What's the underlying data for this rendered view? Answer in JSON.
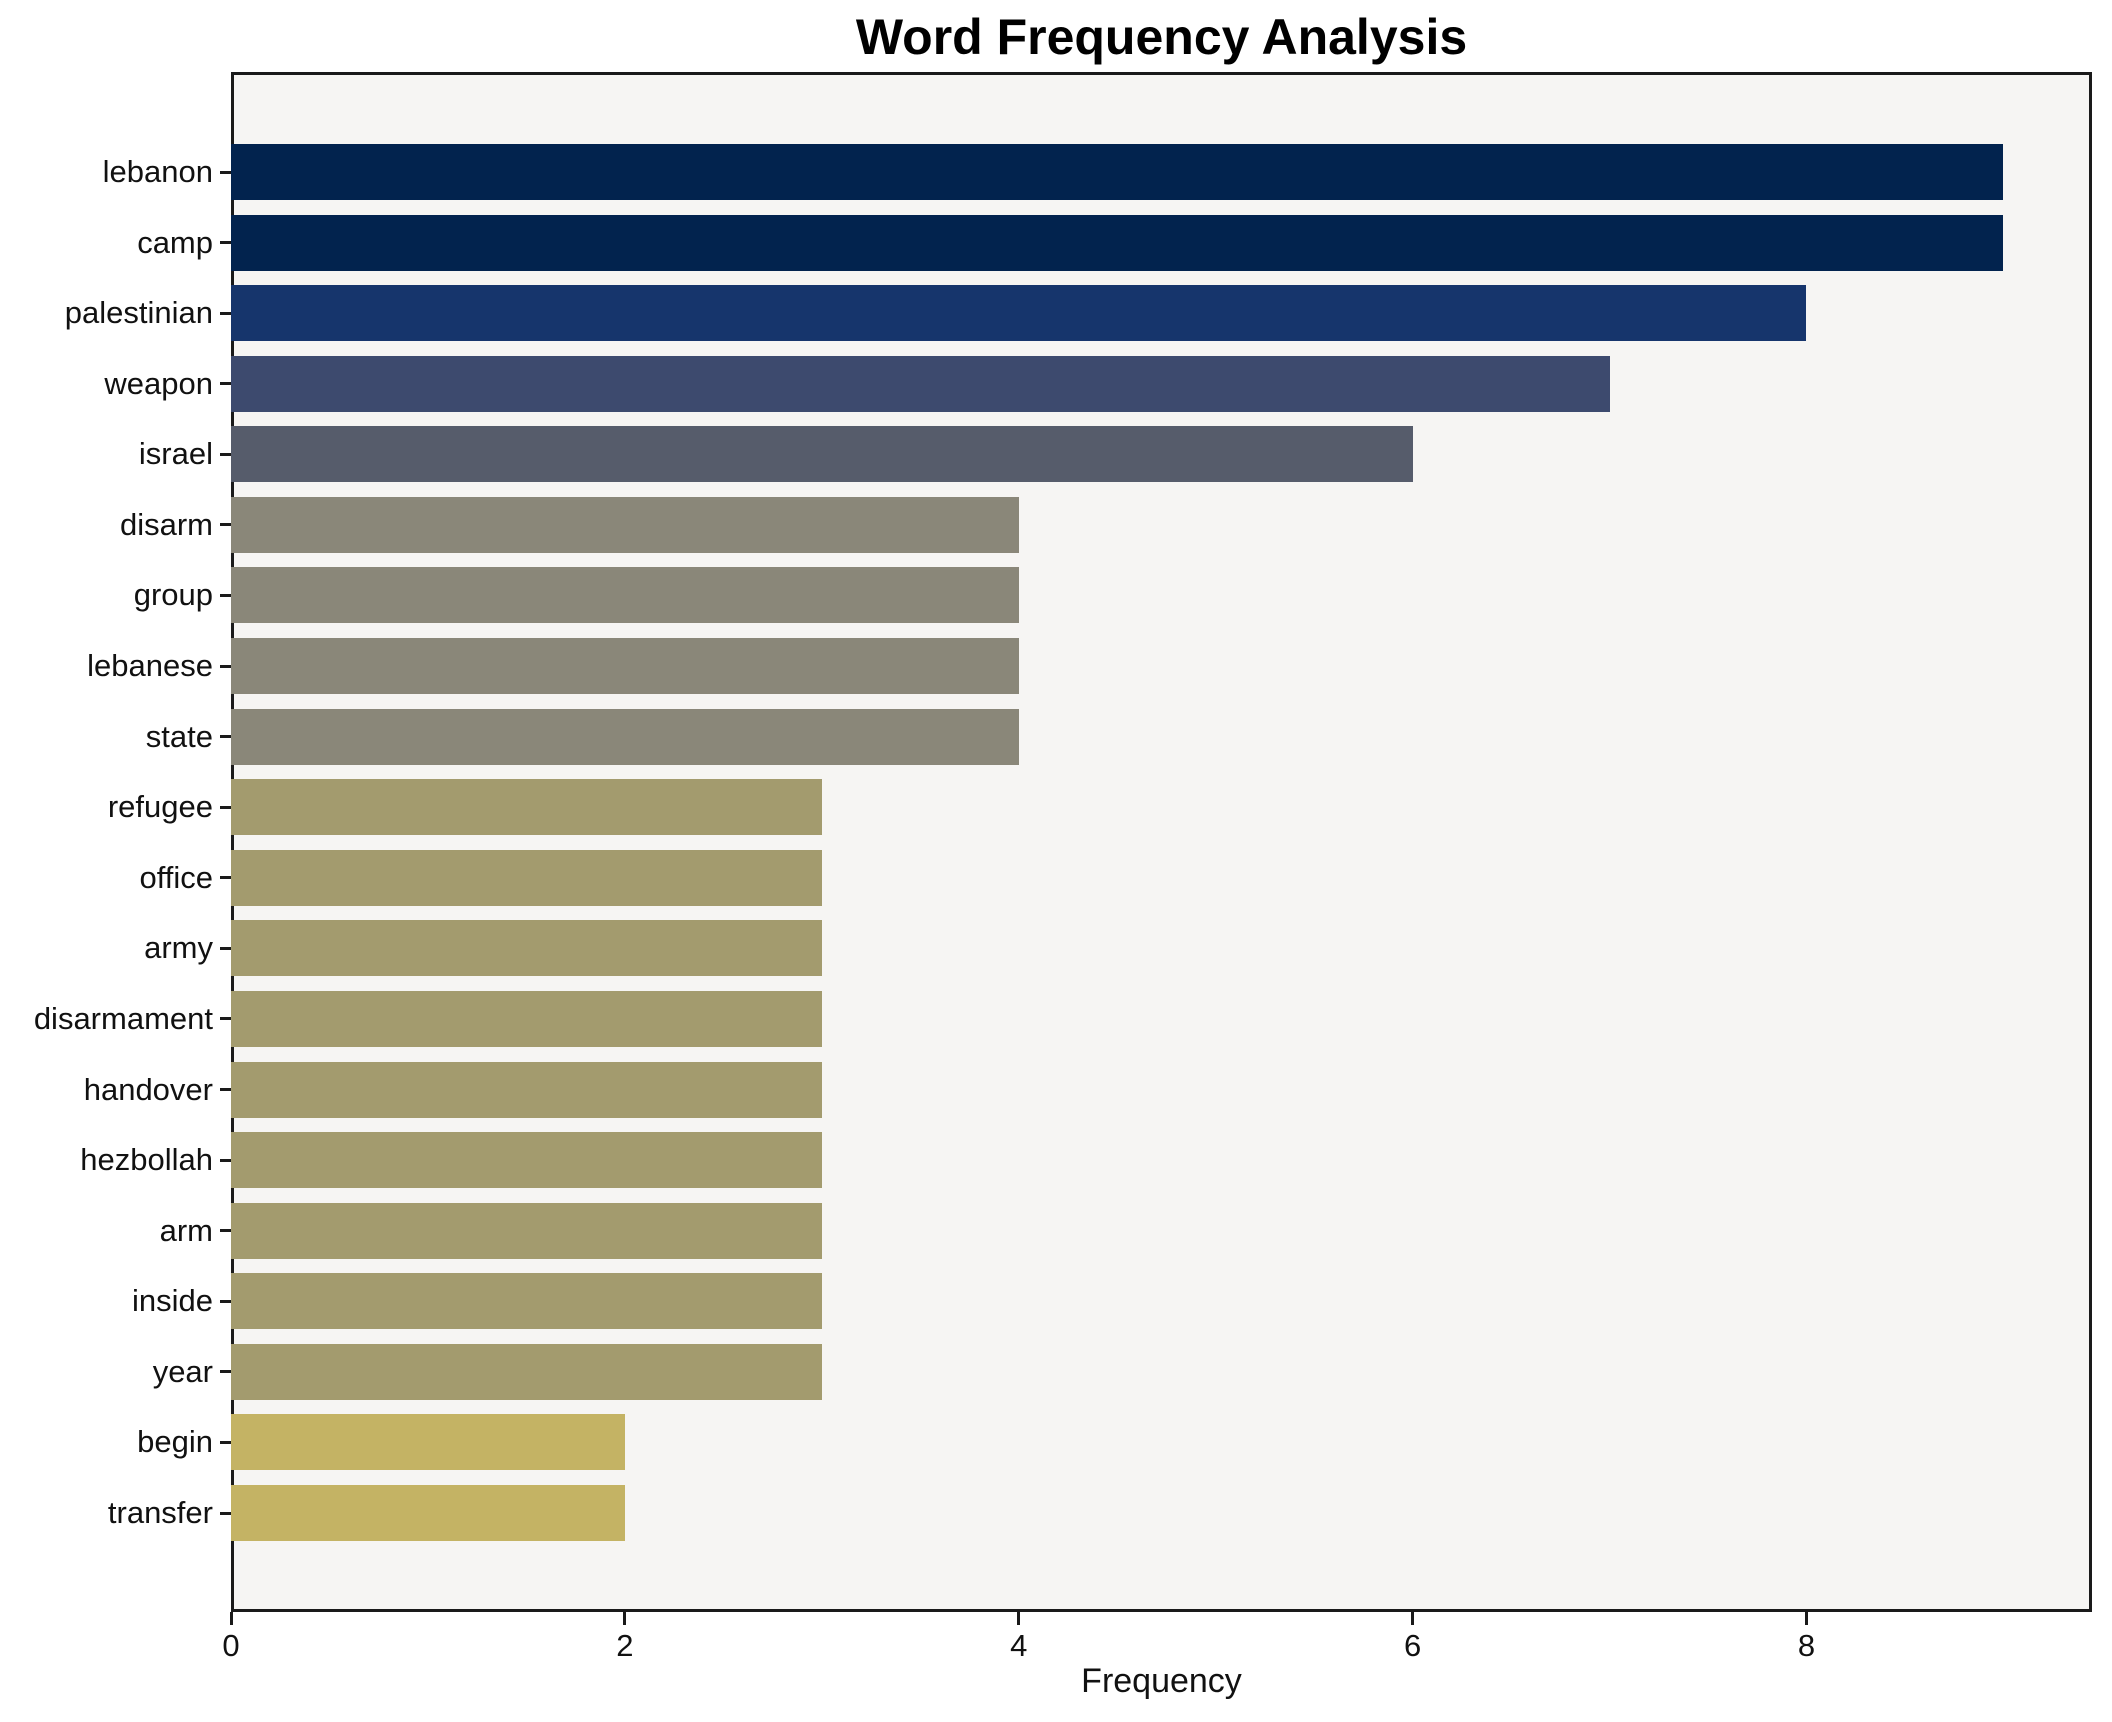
{
  "title": "Word Frequency Analysis",
  "axes": {
    "xlabel": "Frequency",
    "x_tick_labels": [
      "0",
      "2",
      "4",
      "6",
      "8"
    ]
  },
  "chart_data": {
    "type": "bar",
    "orientation": "horizontal",
    "title": "Word Frequency Analysis",
    "xlabel": "Frequency",
    "ylabel": "",
    "categories": [
      "lebanon",
      "camp",
      "palestinian",
      "weapon",
      "israel",
      "disarm",
      "group",
      "lebanese",
      "state",
      "refugee",
      "office",
      "army",
      "disarmament",
      "handover",
      "hezbollah",
      "arm",
      "inside",
      "year",
      "begin",
      "transfer"
    ],
    "values": [
      9,
      9,
      8,
      7,
      6,
      4,
      4,
      4,
      4,
      3,
      3,
      3,
      3,
      3,
      3,
      3,
      3,
      3,
      2,
      2
    ],
    "bar_colors": [
      "#02234e",
      "#02234e",
      "#16356c",
      "#3d4a6e",
      "#565c6b",
      "#8a8779",
      "#8a8779",
      "#8a8779",
      "#8a8779",
      "#a39b6e",
      "#a39b6e",
      "#a39b6e",
      "#a39b6e",
      "#a39b6e",
      "#a39b6e",
      "#a39b6e",
      "#a39b6e",
      "#a39b6e",
      "#c4b364",
      "#c4b364"
    ],
    "xlim": [
      0,
      9.45
    ],
    "xticks": [
      0,
      2,
      4,
      6,
      8
    ],
    "grid": false,
    "legend": null,
    "colors": {
      "figure_bg": "#ffffff",
      "plot_bg": "#f6f5f3",
      "spine": "#1a1a1a",
      "text": "#111111"
    }
  }
}
